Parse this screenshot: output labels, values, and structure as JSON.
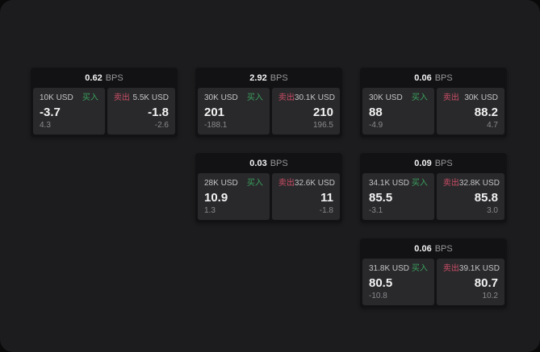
{
  "labels": {
    "bps_unit": "BPS",
    "buy": "买入",
    "sell": "卖出"
  },
  "colors": {
    "backdrop": "#0a0a0b",
    "panel": "#1c1c1e",
    "card": "#121214",
    "tile": "#29292b",
    "text_primary": "#f2f2f3",
    "text_muted": "#8a8a8f",
    "text_label": "#c5c5c8",
    "text_unit": "#97979b",
    "buy_green": "#3ba05e",
    "sell_red": "#cc4e67"
  },
  "cards": [
    {
      "bps": "0.62",
      "col": 1,
      "row": 1,
      "buy": {
        "amount": "10K USD",
        "value": "-3.7",
        "sub": "4.3"
      },
      "sell": {
        "amount": "5.5K USD",
        "value": "-1.8",
        "sub": "-2.6"
      }
    },
    {
      "bps": "2.92",
      "col": 2,
      "row": 1,
      "buy": {
        "amount": "30K USD",
        "value": "201",
        "sub": "-188.1"
      },
      "sell": {
        "amount": "30.1K USD",
        "value": "210",
        "sub": "196.5"
      }
    },
    {
      "bps": "0.06",
      "col": 3,
      "row": 1,
      "buy": {
        "amount": "30K USD",
        "value": "88",
        "sub": "-4.9"
      },
      "sell": {
        "amount": "30K USD",
        "value": "88.2",
        "sub": "4.7"
      }
    },
    {
      "bps": "0.03",
      "col": 2,
      "row": 2,
      "buy": {
        "amount": "28K USD",
        "value": "10.9",
        "sub": "1.3"
      },
      "sell": {
        "amount": "32.6K USD",
        "value": "11",
        "sub": "-1.8"
      }
    },
    {
      "bps": "0.09",
      "col": 3,
      "row": 2,
      "buy": {
        "amount": "34.1K USD",
        "value": "85.5",
        "sub": "-3.1"
      },
      "sell": {
        "amount": "32.8K USD",
        "value": "85.8",
        "sub": "3.0"
      }
    },
    {
      "bps": "0.06",
      "col": 3,
      "row": 3,
      "buy": {
        "amount": "31.8K USD",
        "value": "80.5",
        "sub": "-10.8"
      },
      "sell": {
        "amount": "39.1K USD",
        "value": "80.7",
        "sub": "10.2"
      }
    }
  ]
}
